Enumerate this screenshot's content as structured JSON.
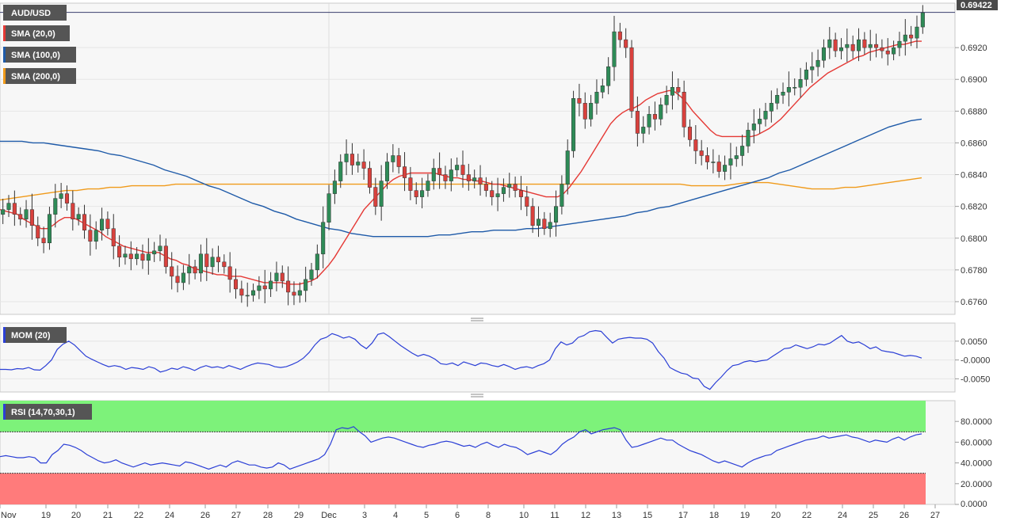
{
  "colors": {
    "bull": "#2e8b57",
    "bear": "#d9413d",
    "sma20": "#e53935",
    "sma100": "#1e5aa8",
    "sma200": "#f09a1a",
    "mom": "#2b3fd6",
    "rsi": "#2b3fd6",
    "overbought": "#7df27a",
    "oversold": "#ff7b7b",
    "badge": "#555555"
  },
  "panels": {
    "main": {
      "legend": [
        {
          "label": "AUD/USD",
          "color": "#555555"
        },
        {
          "label": "SMA (20,0)",
          "color": "#e53935"
        },
        {
          "label": "SMA (100,0)",
          "color": "#1e5aa8"
        },
        {
          "label": "SMA (200,0)",
          "color": "#f09a1a"
        }
      ],
      "last_price_label": "0.69422"
    },
    "mom": {
      "legend": "MOM (20)"
    },
    "rsi": {
      "legend": "RSI (14,70,30,1)"
    }
  },
  "chart_data": [
    {
      "type": "candlestick",
      "title": "AUD/USD",
      "ylim": [
        0.6752,
        0.6948
      ],
      "y_ticks": [
        "0.6760",
        "0.6780",
        "0.6800",
        "0.6820",
        "0.6840",
        "0.6860",
        "0.6880",
        "0.6900",
        "0.6920"
      ],
      "x_ticks": [
        "Nov",
        "19",
        "20",
        "21",
        "22",
        "24",
        "26",
        "27",
        "28",
        "29",
        "Dec",
        "3",
        "4",
        "5",
        "6",
        "8",
        "10",
        "11",
        "12",
        "13",
        "15",
        "17",
        "18",
        "19",
        "20",
        "22",
        "24",
        "25",
        "26",
        "27"
      ],
      "last_value": "0.69422",
      "candles_start": 0.6815,
      "candle_closes": [
        0.6818,
        0.6822,
        0.6815,
        0.6812,
        0.6818,
        0.6808,
        0.68,
        0.6797,
        0.6815,
        0.6825,
        0.6828,
        0.6822,
        0.6812,
        0.6815,
        0.6805,
        0.6798,
        0.6805,
        0.6812,
        0.6806,
        0.6795,
        0.6788,
        0.679,
        0.6787,
        0.679,
        0.6786,
        0.679,
        0.6792,
        0.6795,
        0.6782,
        0.6776,
        0.6772,
        0.6778,
        0.6782,
        0.6778,
        0.679,
        0.6782,
        0.6788,
        0.6785,
        0.6782,
        0.6774,
        0.6768,
        0.6764,
        0.6764,
        0.6767,
        0.677,
        0.6768,
        0.6773,
        0.6778,
        0.6773,
        0.6766,
        0.6764,
        0.6767,
        0.6774,
        0.678,
        0.679,
        0.681,
        0.6828,
        0.6836,
        0.6848,
        0.6853,
        0.6846,
        0.6848,
        0.6844,
        0.6832,
        0.682,
        0.6836,
        0.6848,
        0.6852,
        0.6845,
        0.6838,
        0.683,
        0.6826,
        0.683,
        0.6836,
        0.6844,
        0.684,
        0.6836,
        0.6843,
        0.6846,
        0.684,
        0.6836,
        0.6838,
        0.6834,
        0.683,
        0.6826,
        0.6828,
        0.6832,
        0.6834,
        0.683,
        0.6826,
        0.682,
        0.6808,
        0.6812,
        0.6806,
        0.681,
        0.682,
        0.6834,
        0.6855,
        0.6888,
        0.6885,
        0.6875,
        0.6885,
        0.6892,
        0.6896,
        0.6908,
        0.693,
        0.6925,
        0.692,
        0.688,
        0.6866,
        0.687,
        0.6878,
        0.6875,
        0.6884,
        0.689,
        0.6895,
        0.6892,
        0.687,
        0.6862,
        0.6855,
        0.6852,
        0.6848,
        0.6848,
        0.6842,
        0.6846,
        0.685,
        0.6852,
        0.6858,
        0.6868,
        0.6872,
        0.6875,
        0.688,
        0.6885,
        0.689,
        0.6892,
        0.6895,
        0.6895,
        0.69,
        0.6906,
        0.6908,
        0.6912,
        0.692,
        0.6925,
        0.6918,
        0.692,
        0.6922,
        0.6918,
        0.6925,
        0.692,
        0.6922,
        0.692,
        0.6918,
        0.6916,
        0.692,
        0.6924,
        0.6928,
        0.6926,
        0.6933,
        0.6942
      ],
      "sma20": [
        0.6818,
        0.6817,
        0.6816,
        0.6815,
        0.6812,
        0.681,
        0.6808,
        0.6806,
        0.6806,
        0.6808,
        0.6811,
        0.6813,
        0.6813,
        0.6812,
        0.681,
        0.6808,
        0.6806,
        0.6804,
        0.6801,
        0.6799,
        0.6797,
        0.6795,
        0.6794,
        0.6793,
        0.6792,
        0.6791,
        0.6791,
        0.6791,
        0.6789,
        0.6787,
        0.6786,
        0.6784,
        0.6783,
        0.6781,
        0.678,
        0.6779,
        0.6778,
        0.6777,
        0.6777,
        0.6776,
        0.6776,
        0.6776,
        0.6775,
        0.6774,
        0.6773,
        0.6772,
        0.6772,
        0.6772,
        0.6772,
        0.6771,
        0.6771,
        0.6771,
        0.6772,
        0.6773,
        0.6775,
        0.6779,
        0.6783,
        0.6788,
        0.6794,
        0.68,
        0.6806,
        0.6812,
        0.6818,
        0.6822,
        0.6826,
        0.683,
        0.6834,
        0.6837,
        0.6839,
        0.684,
        0.6841,
        0.6841,
        0.6841,
        0.6841,
        0.6841,
        0.684,
        0.6839,
        0.6838,
        0.6838,
        0.6837,
        0.6837,
        0.6836,
        0.6836,
        0.6835,
        0.6834,
        0.6834,
        0.6833,
        0.6832,
        0.6831,
        0.683,
        0.6829,
        0.6828,
        0.6827,
        0.6826,
        0.6826,
        0.6826,
        0.6828,
        0.6832,
        0.6837,
        0.6842,
        0.6848,
        0.6854,
        0.686,
        0.6866,
        0.6872,
        0.6876,
        0.6879,
        0.6881,
        0.6882,
        0.6884,
        0.6887,
        0.6889,
        0.6891,
        0.6892,
        0.6893,
        0.6892,
        0.6889,
        0.6885,
        0.688,
        0.6876,
        0.6872,
        0.6868,
        0.6865,
        0.6864,
        0.6864,
        0.6864,
        0.6864,
        0.6864,
        0.6864,
        0.6865,
        0.6867,
        0.6869,
        0.6872,
        0.6875,
        0.6879,
        0.6883,
        0.6887,
        0.6891,
        0.6895,
        0.6898,
        0.6901,
        0.6904,
        0.6906,
        0.6908,
        0.691,
        0.6912,
        0.6914,
        0.6915,
        0.6917,
        0.6918,
        0.6919,
        0.692,
        0.6921,
        0.6922,
        0.6922,
        0.6923,
        0.6924,
        0.6924
      ],
      "sma100": [
        0.6861,
        0.6861,
        0.6861,
        0.686,
        0.686,
        0.6859,
        0.6858,
        0.6857,
        0.6856,
        0.6855,
        0.6853,
        0.6852,
        0.685,
        0.6848,
        0.6846,
        0.6843,
        0.6841,
        0.6839,
        0.6836,
        0.6833,
        0.6831,
        0.6828,
        0.6825,
        0.6822,
        0.682,
        0.6817,
        0.6815,
        0.6812,
        0.681,
        0.6808,
        0.6806,
        0.6805,
        0.6803,
        0.6802,
        0.6801,
        0.6801,
        0.6801,
        0.6801,
        0.6801,
        0.6801,
        0.6802,
        0.6802,
        0.6803,
        0.6804,
        0.6804,
        0.6805,
        0.6805,
        0.6805,
        0.6806,
        0.6806,
        0.6807,
        0.6808,
        0.6809,
        0.681,
        0.6811,
        0.6812,
        0.6813,
        0.6814,
        0.6816,
        0.6817,
        0.6819,
        0.682,
        0.6822,
        0.6824,
        0.6826,
        0.6828,
        0.683,
        0.6832,
        0.6834,
        0.6836,
        0.6838,
        0.6841,
        0.6843,
        0.6846,
        0.6849,
        0.6852,
        0.6855,
        0.6858,
        0.6861,
        0.6864,
        0.6867,
        0.687,
        0.6872,
        0.6874,
        0.6875
      ],
      "sma200": [
        0.6824,
        0.6825,
        0.6826,
        0.6827,
        0.6828,
        0.6829,
        0.683,
        0.683,
        0.6831,
        0.6831,
        0.6832,
        0.6832,
        0.6833,
        0.6833,
        0.6833,
        0.6833,
        0.6834,
        0.6834,
        0.6834,
        0.6834,
        0.6834,
        0.6834,
        0.6834,
        0.6834,
        0.6834,
        0.6834,
        0.6834,
        0.6834,
        0.6834,
        0.6834,
        0.6834,
        0.6834,
        0.6834,
        0.6834,
        0.6834,
        0.6834,
        0.6834,
        0.6834,
        0.6834,
        0.6834,
        0.6834,
        0.6834,
        0.6834,
        0.6834,
        0.6834,
        0.6834,
        0.6834,
        0.6834,
        0.6834,
        0.6834,
        0.6834,
        0.6834,
        0.6834,
        0.6834,
        0.6834,
        0.6834,
        0.6834,
        0.6834,
        0.6834,
        0.6834,
        0.6834,
        0.6834,
        0.6834,
        0.6833,
        0.6833,
        0.6833,
        0.6833,
        0.6834,
        0.6835,
        0.6835,
        0.6835,
        0.6834,
        0.6833,
        0.6832,
        0.6831,
        0.6831,
        0.6831,
        0.6832,
        0.6832,
        0.6833,
        0.6834,
        0.6835,
        0.6836,
        0.6837,
        0.6838
      ]
    },
    {
      "type": "line",
      "title": "MOM (20)",
      "ylim": [
        -0.0085,
        0.0098
      ],
      "y_ticks": [
        "0.0050",
        "-0.0000",
        "-0.0050"
      ],
      "values": [
        -0.0025,
        -0.0025,
        -0.0026,
        -0.0023,
        -0.0024,
        -0.002,
        -0.0026,
        -0.0027,
        -0.0015,
        0.0,
        0.0028,
        0.0042,
        0.005,
        0.004,
        0.0025,
        0.001,
        0.0002,
        -0.0005,
        -0.0012,
        -0.0018,
        -0.0015,
        -0.0018,
        -0.0025,
        -0.002,
        -0.0022,
        -0.0025,
        -0.0018,
        -0.0022,
        -0.0032,
        -0.0028,
        -0.0022,
        -0.0025,
        -0.0018,
        -0.0022,
        -0.0028,
        -0.002,
        -0.0015,
        -0.002,
        -0.0018,
        -0.0022,
        -0.0015,
        -0.002,
        -0.0025,
        -0.0018,
        -0.0012,
        -0.0008,
        -0.001,
        -0.0012,
        -0.0018,
        -0.002,
        -0.0018,
        -0.0012,
        -0.0005,
        0.0005,
        0.002,
        0.004,
        0.0055,
        0.006,
        0.007,
        0.0065,
        0.0058,
        0.0062,
        0.0055,
        0.004,
        0.003,
        0.0045,
        0.0068,
        0.0072,
        0.0062,
        0.005,
        0.0038,
        0.0028,
        0.0018,
        0.001,
        0.0015,
        0.001,
        0.0002,
        -0.001,
        -0.0012,
        -0.0008,
        -0.0015,
        -0.0005,
        -0.001,
        -0.0015,
        -0.0008,
        -0.001,
        -0.0015,
        -0.0018,
        -0.0012,
        -0.0018,
        -0.0025,
        -0.002,
        -0.0018,
        -0.0022,
        -0.0015,
        -0.001,
        0.0,
        0.003,
        0.0048,
        0.004,
        0.0045,
        0.006,
        0.0065,
        0.0075,
        0.0078,
        0.0076,
        0.006,
        0.0045,
        0.0055,
        0.0058,
        0.006,
        0.0058,
        0.0058,
        0.0055,
        0.0045,
        0.0022,
        0.0005,
        -0.002,
        -0.0028,
        -0.0035,
        -0.0038,
        -0.0048,
        -0.005,
        -0.007,
        -0.0078,
        -0.006,
        -0.0045,
        -0.0028,
        -0.0015,
        -0.0012,
        -0.0005,
        -0.0002,
        -0.0005,
        -0.0002,
        0.0,
        0.001,
        0.002,
        0.003,
        0.0032,
        0.004,
        0.0035,
        0.003,
        0.0035,
        0.0042,
        0.004,
        0.0045,
        0.0055,
        0.0065,
        0.005,
        0.0045,
        0.0048,
        0.004,
        0.003,
        0.0035,
        0.0025,
        0.0022,
        0.002,
        0.0015,
        0.001,
        0.0012,
        0.001,
        0.0005
      ]
    },
    {
      "type": "line",
      "title": "RSI (14,70,30,1)",
      "ylim": [
        0,
        100
      ],
      "levels": [
        70,
        30
      ],
      "y_ticks": [
        "0.0000",
        "20.0000",
        "40.0000",
        "60.0000",
        "80.0000"
      ],
      "values": [
        46,
        47,
        46,
        45,
        45,
        46,
        45,
        40,
        40,
        48,
        52,
        58,
        57,
        55,
        52,
        48,
        45,
        42,
        40,
        41,
        43,
        40,
        38,
        36,
        38,
        40,
        38,
        39,
        40,
        39,
        38,
        37,
        41,
        40,
        38,
        36,
        34,
        36,
        38,
        36,
        40,
        42,
        40,
        38,
        38,
        36,
        35,
        36,
        40,
        38,
        34,
        36,
        38,
        40,
        42,
        44,
        48,
        58,
        72,
        74,
        73,
        75,
        70,
        66,
        60,
        62,
        64,
        65,
        64,
        62,
        60,
        58,
        56,
        55,
        57,
        58,
        60,
        61,
        60,
        58,
        56,
        57,
        55,
        58,
        60,
        57,
        55,
        58,
        56,
        55,
        52,
        48,
        50,
        52,
        50,
        48,
        52,
        58,
        62,
        65,
        70,
        72,
        68,
        70,
        72,
        73,
        74,
        72,
        62,
        55,
        56,
        58,
        60,
        62,
        64,
        62,
        62,
        58,
        55,
        52,
        50,
        48,
        45,
        42,
        40,
        42,
        40,
        38,
        36,
        40,
        43,
        45,
        47,
        48,
        52,
        54,
        56,
        58,
        60,
        62,
        63,
        64,
        66,
        64,
        65,
        66,
        67,
        65,
        64,
        62,
        60,
        62,
        61,
        60,
        63,
        65,
        62,
        65,
        67,
        68
      ]
    }
  ]
}
